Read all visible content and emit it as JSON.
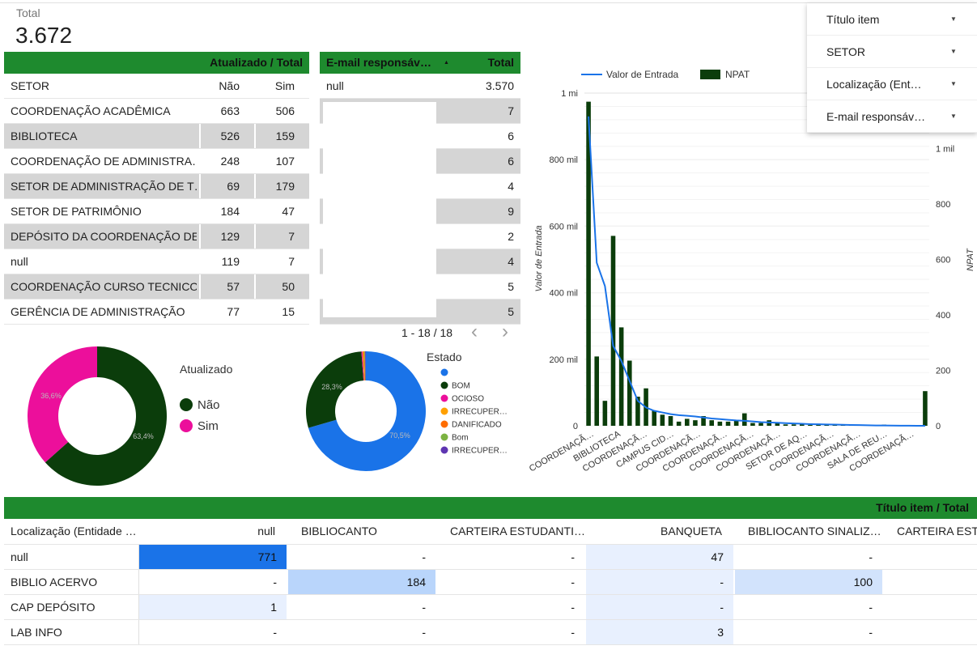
{
  "scorecard": {
    "label": "Total",
    "value": "3.672"
  },
  "filters": [
    {
      "label": "Título item"
    },
    {
      "label": "SETOR"
    },
    {
      "label": "Localização (Ent…"
    },
    {
      "label": "E-mail responsáv…"
    }
  ],
  "setor_table": {
    "header": "Atualizado / Total",
    "columns": [
      "SETOR",
      "Não",
      "Sim"
    ],
    "rows": [
      {
        "setor": "COORDENAÇÃO ACADÊMICA",
        "nao": "663",
        "sim": "506"
      },
      {
        "setor": "BIBLIOTECA",
        "nao": "526",
        "sim": "159"
      },
      {
        "setor": "COORDENAÇÃO DE ADMINISTRA…",
        "nao": "248",
        "sim": "107"
      },
      {
        "setor": "SETOR DE ADMINISTRAÇÃO DE T…",
        "nao": "69",
        "sim": "179"
      },
      {
        "setor": "SETOR DE PATRIMÔNIO",
        "nao": "184",
        "sim": "47"
      },
      {
        "setor": "DEPÓSITO DA COORDENAÇÃO DE …",
        "nao": "129",
        "sim": "7"
      },
      {
        "setor": "null",
        "nao": "119",
        "sim": "7"
      },
      {
        "setor": "COORDENAÇÃO CURSO TECNICO …",
        "nao": "57",
        "sim": "50"
      },
      {
        "setor": "GERÊNCIA DE ADMINISTRAÇÃO",
        "nao": "77",
        "sim": "15"
      }
    ]
  },
  "email_table": {
    "col1": "E-mail responsáv…",
    "sort_icon": "▲",
    "col2": "Total",
    "rows": [
      {
        "email": "null",
        "total": "3.570"
      },
      {
        "email": "",
        "total": "7"
      },
      {
        "email": "",
        "total": "6"
      },
      {
        "email": "",
        "total": "6"
      },
      {
        "email": "",
        "total": "4"
      },
      {
        "email": "",
        "total": "9"
      },
      {
        "email": "",
        "total": "2"
      },
      {
        "email": "",
        "total": "4"
      },
      {
        "email": "",
        "total": "5"
      },
      {
        "email": "",
        "total": "5"
      }
    ],
    "pagination": "1 - 18 / 18",
    "prev": "‹",
    "next": "›"
  },
  "pie_atualizado": {
    "title": "Atualizado",
    "slices": [
      {
        "name": "Não",
        "value": 63.4,
        "label": "63,4%",
        "color": "#0b3d0b"
      },
      {
        "name": "Sim",
        "value": 36.6,
        "label": "36,6%",
        "color": "#ec0f9b"
      }
    ]
  },
  "pie_estado": {
    "title": "Estado",
    "slices": [
      {
        "name": "",
        "value": 70.5,
        "label": "70,5%",
        "color": "#1a73e8"
      },
      {
        "name": "BOM",
        "value": 28.3,
        "label": "28,3%",
        "color": "#0b3d0b"
      },
      {
        "name": "OCIOSO",
        "value": 0.3,
        "label": "",
        "color": "#ec0f9b"
      },
      {
        "name": "IRRECUPER…",
        "value": 0.2,
        "label": "",
        "color": "#ffa000"
      },
      {
        "name": "DANIFICADO",
        "value": 0.3,
        "label": "",
        "color": "#ff6d00"
      },
      {
        "name": "Bom",
        "value": 0.2,
        "label": "",
        "color": "#7cb342"
      },
      {
        "name": "IRRECUPER…",
        "value": 0.2,
        "label": "",
        "color": "#5e35b1"
      }
    ]
  },
  "chart_data": {
    "type": "bar",
    "legend": [
      {
        "name": "Valor de Entrada",
        "kind": "line",
        "color": "#1a73e8"
      },
      {
        "name": "NPAT",
        "kind": "bar",
        "color": "#0b3d0b"
      }
    ],
    "ylabel_left": "Valor de Entrada",
    "ylabel_right": "NPAT",
    "left_ticks": [
      "0",
      "200 mil",
      "400 mil",
      "600 mil",
      "800 mil",
      "1 mi"
    ],
    "left_range": [
      0,
      1000000
    ],
    "right_ticks": [
      "0",
      "200",
      "400",
      "600",
      "800",
      "1 mil"
    ],
    "right_range": [
      0,
      1200
    ],
    "x_labels": [
      "COORDENAÇÃ…",
      "BIBLIOTECA",
      "COORDENAÇÃ…",
      "CAMPUS CID…",
      "COORDENAÇÃ…",
      "COORDENAÇÃ…",
      "COORDENAÇÃ…",
      "COORDENAÇÃ…",
      "SETOR DE AQ…",
      "COORDENAÇÃ…",
      "COORDENAÇÃ…",
      "SALA DE REU…",
      "COORDENAÇÃ…"
    ],
    "npat": [
      1169,
      250,
      90,
      685,
      355,
      235,
      105,
      135,
      55,
      40,
      35,
      15,
      25,
      20,
      35,
      20,
      15,
      15,
      20,
      45,
      10,
      10,
      20,
      10,
      5,
      5,
      5,
      3,
      3,
      3,
      2,
      2,
      2,
      3,
      1,
      2,
      4,
      1,
      0,
      0,
      1,
      125
    ],
    "valor_entrada": [
      930000,
      490000,
      420000,
      240000,
      195000,
      135000,
      75000,
      55000,
      45000,
      40000,
      35000,
      32000,
      30000,
      28000,
      25000,
      22000,
      20000,
      18000,
      16000,
      15000,
      13000,
      11000,
      10000,
      9000,
      8000,
      7000,
      6000,
      5000,
      4500,
      4000,
      3500,
      3000,
      2500,
      2000,
      1500,
      1000,
      800,
      500,
      300,
      200,
      100,
      0
    ]
  },
  "pivot": {
    "header": "Título item / Total",
    "columns": [
      "Localização (Entidade …",
      "null",
      "BIBLIOCANTO",
      "CARTEIRA ESTUDANTI…",
      "BANQUETA",
      "BIBLIOCANTO SINALIZ…",
      "CARTEIRA ESTUDA"
    ],
    "rows": [
      {
        "label": "null",
        "values": [
          "771",
          "-",
          "-",
          "47",
          "-",
          ""
        ]
      },
      {
        "label": "BIBLIO ACERVO",
        "values": [
          "-",
          "184",
          "-",
          "-",
          "100",
          ""
        ]
      },
      {
        "label": "CAP DEPÓSITO",
        "values": [
          "1",
          "-",
          "-",
          "-",
          "-",
          ""
        ]
      },
      {
        "label": "LAB INFO",
        "values": [
          "-",
          "-",
          "-",
          "3",
          "-",
          ""
        ]
      }
    ]
  }
}
